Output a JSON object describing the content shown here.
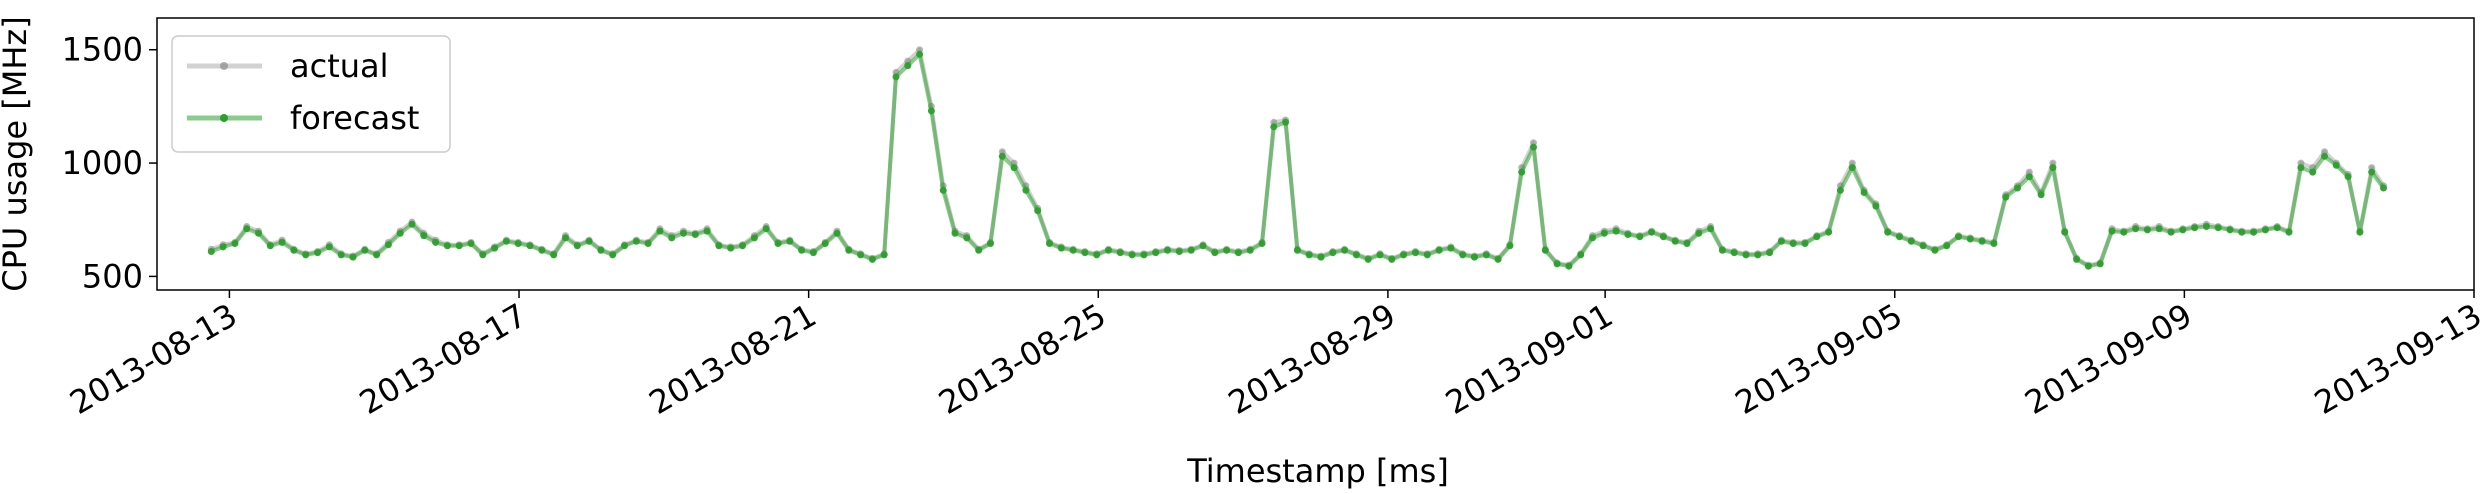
{
  "chart_data": {
    "type": "line",
    "xlabel": "Timestamp [ms]",
    "ylabel": "CPU usage [MHz]",
    "x_start": "2013-08-12T18:00",
    "x_end": "2013-09-11T18:00",
    "xlim": [
      "2013-08-12T00:00",
      "2013-09-13T00:00"
    ],
    "ylim": [
      440,
      1640
    ],
    "x_ticks": [
      "2013-08-13",
      "2013-08-17",
      "2013-08-21",
      "2013-08-25",
      "2013-08-29",
      "2013-09-01",
      "2013-09-05",
      "2013-09-09",
      "2013-09-13"
    ],
    "y_ticks": [
      500,
      1000,
      1500
    ],
    "grid": false,
    "legend_position": "top-left",
    "series": [
      {
        "name": "actual",
        "color": "#7f7f7f",
        "values": [
          620,
          640,
          650,
          720,
          700,
          640,
          660,
          620,
          600,
          610,
          640,
          600,
          590,
          620,
          600,
          650,
          700,
          740,
          690,
          660,
          640,
          640,
          650,
          600,
          630,
          660,
          650,
          640,
          620,
          600,
          680,
          640,
          660,
          620,
          600,
          640,
          660,
          650,
          710,
          680,
          700,
          690,
          710,
          640,
          630,
          640,
          680,
          720,
          650,
          660,
          620,
          610,
          650,
          700,
          620,
          600,
          580,
          600,
          1400,
          1450,
          1500,
          1250,
          900,
          700,
          680,
          620,
          650,
          1050,
          1000,
          900,
          800,
          650,
          630,
          620,
          610,
          600,
          620,
          610,
          600,
          600,
          610,
          620,
          615,
          620,
          640,
          610,
          620,
          610,
          620,
          650,
          1180,
          1190,
          620,
          600,
          590,
          610,
          620,
          600,
          580,
          600,
          580,
          600,
          610,
          600,
          620,
          630,
          600,
          590,
          600,
          580,
          640,
          980,
          1090,
          620,
          560,
          550,
          600,
          680,
          700,
          710,
          690,
          680,
          700,
          680,
          660,
          650,
          700,
          720,
          620,
          610,
          600,
          600,
          610,
          660,
          650,
          650,
          680,
          700,
          900,
          1000,
          880,
          820,
          700,
          680,
          660,
          640,
          620,
          640,
          680,
          670,
          660,
          650,
          860,
          900,
          960,
          870,
          1000,
          700,
          580,
          550,
          560,
          710,
          700,
          720,
          710,
          720,
          700,
          710,
          720,
          730,
          720,
          710,
          700,
          700,
          710,
          720,
          700,
          1000,
          980,
          1050,
          1000,
          950,
          700,
          980,
          900
        ]
      },
      {
        "name": "forecast",
        "color": "#2ca02c",
        "values": [
          610,
          630,
          645,
          710,
          690,
          635,
          650,
          615,
          595,
          605,
          630,
          595,
          585,
          615,
          595,
          640,
          690,
          730,
          680,
          650,
          635,
          635,
          645,
          595,
          625,
          655,
          645,
          635,
          615,
          595,
          670,
          635,
          655,
          615,
          595,
          635,
          655,
          645,
          700,
          670,
          690,
          685,
          700,
          635,
          625,
          635,
          670,
          710,
          645,
          655,
          615,
          605,
          645,
          690,
          615,
          595,
          575,
          595,
          1380,
          1430,
          1480,
          1230,
          880,
          690,
          670,
          615,
          645,
          1030,
          980,
          880,
          790,
          645,
          625,
          615,
          605,
          595,
          615,
          605,
          595,
          595,
          605,
          615,
          610,
          615,
          635,
          605,
          615,
          605,
          615,
          645,
          1160,
          1180,
          615,
          595,
          585,
          605,
          615,
          595,
          575,
          595,
          575,
          595,
          605,
          595,
          615,
          625,
          595,
          585,
          595,
          575,
          635,
          960,
          1070,
          615,
          555,
          545,
          595,
          670,
          690,
          700,
          685,
          675,
          695,
          675,
          655,
          645,
          690,
          710,
          615,
          605,
          595,
          595,
          605,
          655,
          645,
          645,
          675,
          695,
          880,
          980,
          870,
          810,
          695,
          675,
          655,
          635,
          615,
          635,
          675,
          665,
          655,
          645,
          850,
          890,
          940,
          860,
          980,
          695,
          575,
          545,
          555,
          700,
          695,
          710,
          705,
          710,
          695,
          705,
          715,
          720,
          715,
          705,
          695,
          695,
          705,
          715,
          695,
          980,
          960,
          1030,
          990,
          940,
          695,
          960,
          890
        ]
      }
    ]
  }
}
